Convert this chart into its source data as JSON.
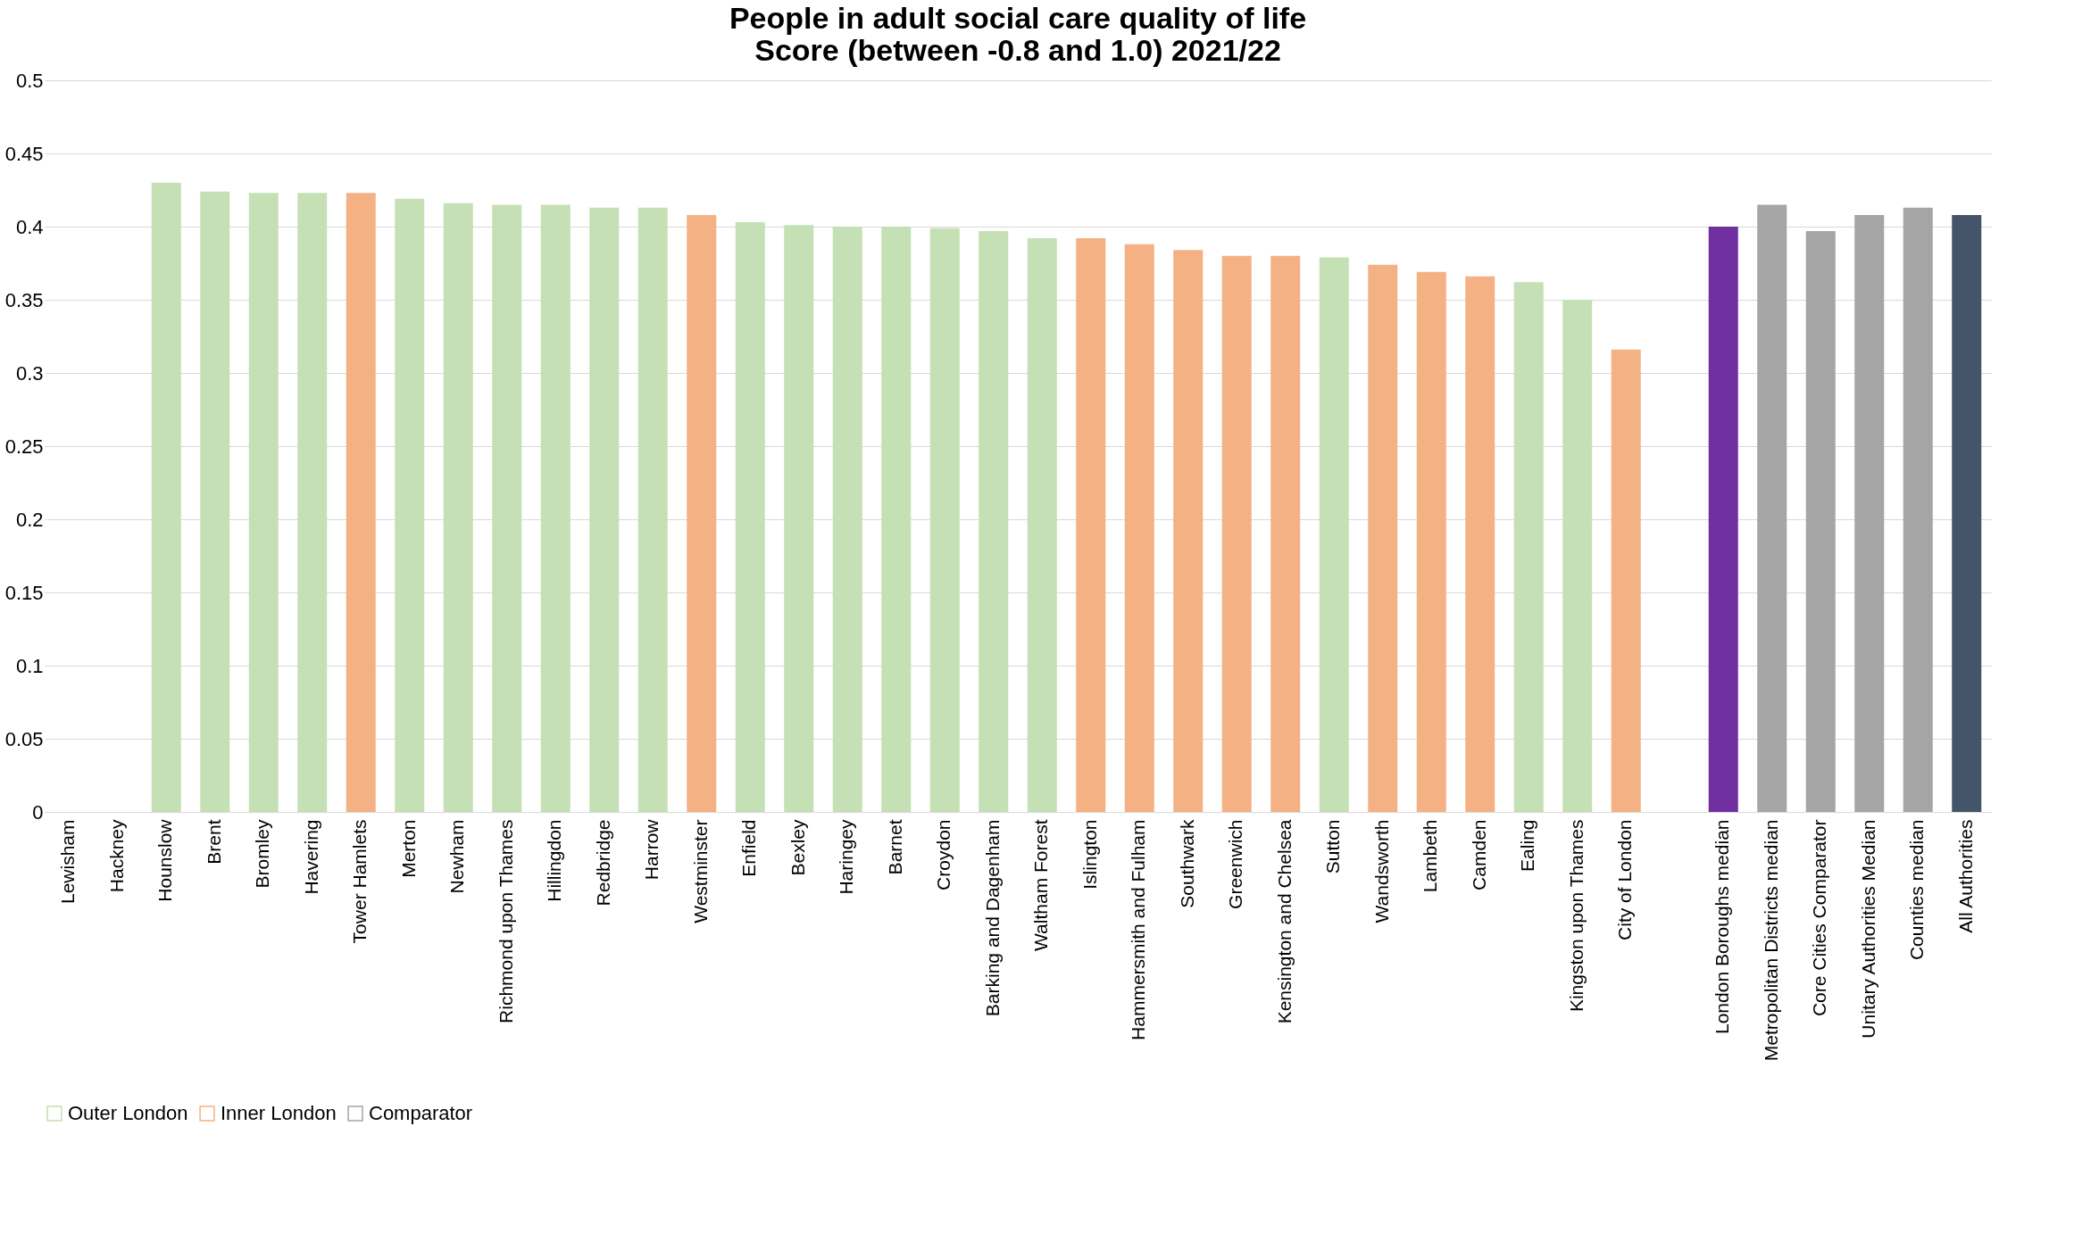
{
  "chart_data": {
    "type": "bar",
    "title": [
      "People in adult social care quality of life",
      "Score (between -0.8 and 1.0) 2021/22"
    ],
    "categories": [
      "Lewisham",
      "Hackney",
      "Hounslow",
      "Brent",
      "Bromley",
      "Havering",
      "Tower Hamlets",
      "Merton",
      "Newham",
      "Richmond upon Thames",
      "Hillingdon",
      "Redbridge",
      "Harrow",
      "Westminster",
      "Enfield",
      "Bexley",
      "Haringey",
      "Barnet",
      "Croydon",
      "Barking and Dagenham",
      "Waltham Forest",
      "Islington",
      "Hammersmith and Fulham",
      "Southwark",
      "Greenwich",
      "Kensington and Chelsea",
      "Sutton",
      "Wandsworth",
      "Lambeth",
      "Camden",
      "Ealing",
      "Kingston upon Thames",
      "City of London",
      null,
      "London Boroughs median",
      "Metropolitan Districts median",
      "Core Cities Comparator",
      "Unitary Authorities Median",
      "Counties median",
      "All Authorities"
    ],
    "series": [
      {
        "name": "Outer London",
        "color": "#c5e0b4",
        "values": [
          null,
          null,
          0.43,
          0.424,
          0.423,
          0.423,
          null,
          0.419,
          0.416,
          0.415,
          0.415,
          0.413,
          0.413,
          null,
          0.403,
          0.401,
          0.4,
          0.4,
          0.399,
          0.397,
          0.392,
          null,
          null,
          null,
          null,
          null,
          0.379,
          null,
          null,
          null,
          0.362,
          0.35,
          null,
          null,
          null,
          null,
          null,
          null,
          null,
          null
        ]
      },
      {
        "name": "Inner London",
        "color": "#f4b183",
        "values": [
          null,
          null,
          null,
          null,
          null,
          null,
          0.423,
          null,
          null,
          null,
          null,
          null,
          null,
          0.408,
          null,
          null,
          null,
          null,
          null,
          null,
          null,
          0.392,
          0.388,
          0.384,
          0.38,
          0.38,
          null,
          0.374,
          0.369,
          0.366,
          null,
          null,
          0.316,
          null,
          null,
          null,
          null,
          null,
          null,
          null
        ]
      },
      {
        "name": "Comparator",
        "color": "#a5a5a5",
        "colors": [
          null,
          null,
          null,
          null,
          null,
          null,
          null,
          null,
          null,
          null,
          null,
          null,
          null,
          null,
          null,
          null,
          null,
          null,
          null,
          null,
          null,
          null,
          null,
          null,
          null,
          null,
          null,
          null,
          null,
          null,
          null,
          null,
          null,
          null,
          "#7030a0",
          "#a5a5a5",
          "#a5a5a5",
          "#a5a5a5",
          "#a5a5a5",
          "#44546a"
        ],
        "values": [
          null,
          null,
          null,
          null,
          null,
          null,
          null,
          null,
          null,
          null,
          null,
          null,
          null,
          null,
          null,
          null,
          null,
          null,
          null,
          null,
          null,
          null,
          null,
          null,
          null,
          null,
          null,
          null,
          null,
          null,
          null,
          null,
          null,
          null,
          0.4,
          0.415,
          0.397,
          0.408,
          0.413,
          0.408
        ]
      }
    ],
    "ylim": [
      0,
      0.5
    ],
    "yticks": [
      0,
      0.05,
      0.1,
      0.15,
      0.2,
      0.25,
      0.3,
      0.35,
      0.4,
      0.45,
      0.5
    ],
    "grid": "y",
    "legend": "bottom"
  }
}
